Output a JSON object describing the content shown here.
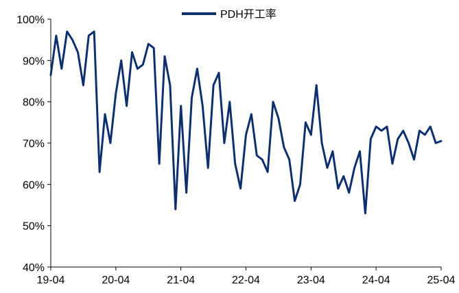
{
  "chart_data": {
    "type": "line",
    "title": "",
    "xlabel": "",
    "ylabel": "",
    "legend": {
      "position": "top-center"
    },
    "grid": false,
    "x_tick_labels": [
      "19-04",
      "20-04",
      "21-04",
      "22-04",
      "23-04",
      "24-04",
      "25-04"
    ],
    "y_tick_labels": [
      "40%",
      "50%",
      "60%",
      "70%",
      "80%",
      "90%",
      "100%"
    ],
    "ylim": [
      40,
      100
    ],
    "xlim": [
      "2019-04",
      "2025-04"
    ],
    "series": [
      {
        "name": "PDH开工率",
        "color": "#0d2f6e",
        "x": [
          "2019-04",
          "2019-05",
          "2019-06",
          "2019-07",
          "2019-08",
          "2019-09",
          "2019-10",
          "2019-11",
          "2019-12",
          "2020-01",
          "2020-02",
          "2020-03",
          "2020-04",
          "2020-05",
          "2020-06",
          "2020-07",
          "2020-08",
          "2020-09",
          "2020-10",
          "2020-11",
          "2020-12",
          "2021-01",
          "2021-02",
          "2021-03",
          "2021-04",
          "2021-05",
          "2021-06",
          "2021-07",
          "2021-08",
          "2021-09",
          "2021-10",
          "2021-11",
          "2021-12",
          "2022-01",
          "2022-02",
          "2022-03",
          "2022-04",
          "2022-05",
          "2022-06",
          "2022-07",
          "2022-08",
          "2022-09",
          "2022-10",
          "2022-11",
          "2022-12",
          "2023-01",
          "2023-02",
          "2023-03",
          "2023-04",
          "2023-05",
          "2023-06",
          "2023-07",
          "2023-08",
          "2023-09",
          "2023-10",
          "2023-11",
          "2023-12",
          "2024-01",
          "2024-02",
          "2024-03",
          "2024-04",
          "2024-05",
          "2024-06",
          "2024-07",
          "2024-08",
          "2024-09",
          "2024-10",
          "2024-11",
          "2024-12",
          "2025-01",
          "2025-02",
          "2025-03",
          "2025-04"
        ],
        "values": [
          86.5,
          96,
          88,
          97,
          95,
          92,
          84,
          96,
          97,
          63,
          77,
          70,
          82,
          90,
          79,
          92,
          88,
          89,
          94,
          93,
          65,
          91,
          84,
          54,
          79,
          58,
          81,
          88,
          79,
          64,
          84,
          87,
          70,
          80,
          65,
          59,
          72,
          77,
          67,
          66,
          63,
          80,
          76,
          69,
          66,
          56,
          60,
          75,
          72,
          84,
          70,
          64,
          68,
          59,
          62,
          58,
          64,
          68,
          53,
          71,
          74,
          73,
          74,
          65,
          71,
          73,
          70,
          66,
          73,
          72,
          74,
          70,
          70.5
        ]
      }
    ]
  }
}
